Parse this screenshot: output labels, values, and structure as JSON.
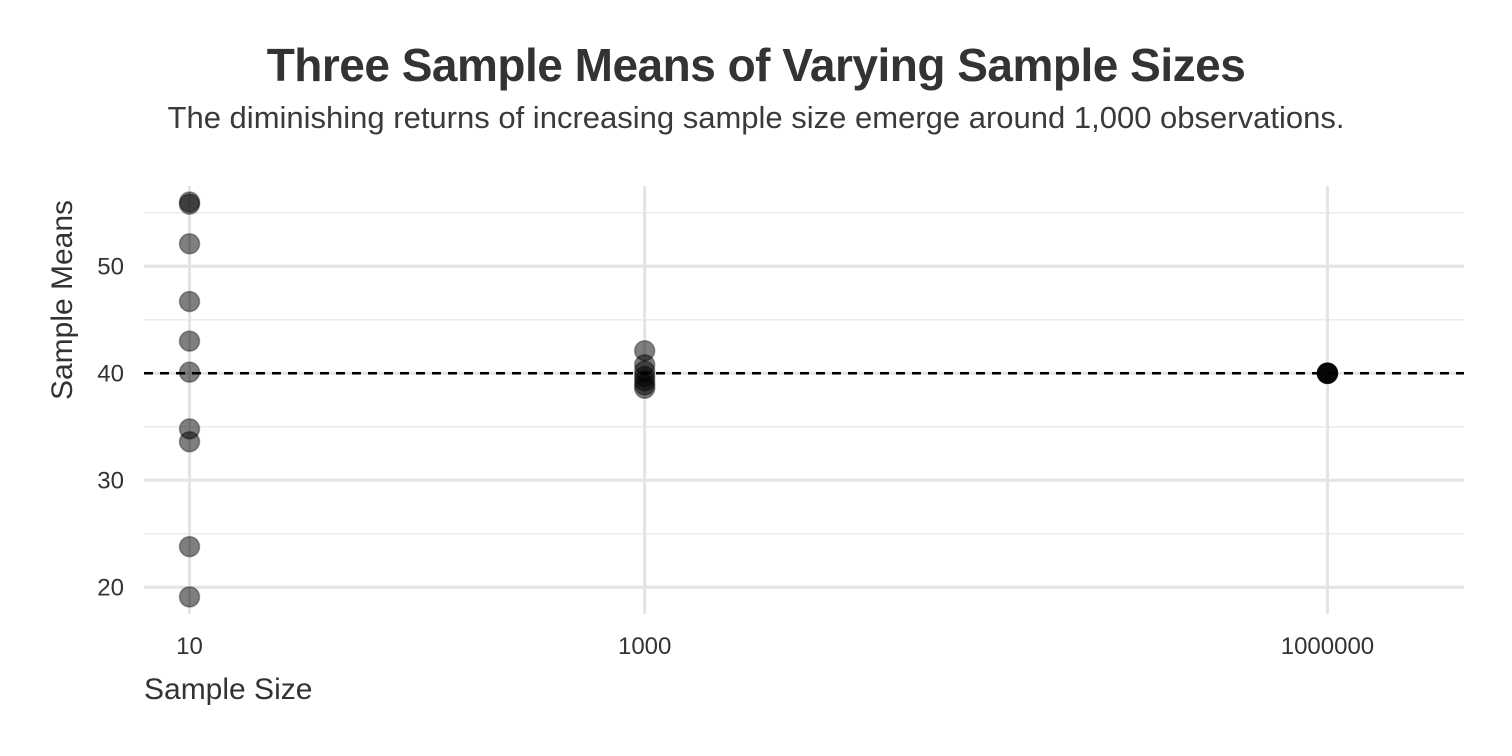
{
  "chart_data": {
    "type": "scatter",
    "title": "Three Sample Means of Varying Sample Sizes",
    "subtitle": "The diminishing returns of increasing sample size emerge around 1,000 observations.",
    "xlabel": "Sample Size",
    "ylabel": "Sample Means",
    "x_scale": "log10",
    "x_ticks": [
      10,
      1000,
      1000000
    ],
    "x_tick_labels": [
      "10",
      "1000",
      "1000000"
    ],
    "y_ticks": [
      20,
      30,
      40,
      50
    ],
    "y_tick_labels": [
      "20",
      "30",
      "40",
      "50"
    ],
    "xlim": [
      0.8,
      6.6
    ],
    "ylim": [
      17.5,
      57.5
    ],
    "grid": true,
    "reference_line": {
      "y": 40,
      "style": "dashed",
      "color": "#000000"
    },
    "point_color": "#000000",
    "point_opacity": 0.5,
    "series": [
      {
        "x": 10,
        "y": [
          56.0,
          55.8,
          52.1,
          46.7,
          43.0,
          40.1,
          34.8,
          33.6,
          23.8,
          19.1
        ]
      },
      {
        "x": 1000,
        "y": [
          42.1,
          40.8,
          40.2,
          39.7,
          39.3,
          38.9,
          38.6
        ]
      },
      {
        "x": 1000000,
        "y": [
          40.02,
          40.01,
          40.0,
          39.99,
          39.98
        ]
      }
    ]
  }
}
